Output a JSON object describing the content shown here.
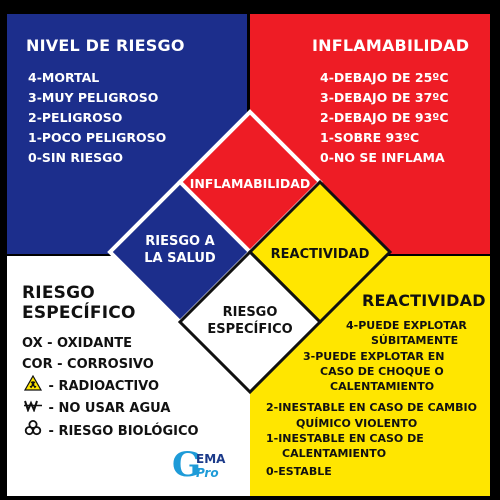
{
  "quadrants": {
    "nivel": {
      "title": "NIVEL DE RIESGO",
      "items": [
        "4-MORTAL",
        "3-MUY PELIGROSO",
        "2-PELIGROSO",
        "1-POCO PELIGROSO",
        "0-SIN RIESGO"
      ]
    },
    "inflamabilidad": {
      "title": "INFLAMABILIDAD",
      "items": [
        "4-DEBAJO DE 25ºC",
        "3-DEBAJO DE 37ºC",
        "2-DEBAJO DE 93ºC",
        "1-SOBRE 93ºC",
        "0-NO SE INFLAMA"
      ]
    },
    "especifico": {
      "title_line1": "RIESGO",
      "title_line2": "ESPECÍFICO",
      "items": [
        "OX - OXIDANTE",
        "COR - CORROSIVO",
        "- RADIOACTIVO",
        "- NO USAR AGUA",
        "- RIESGO BIOLÓGICO"
      ],
      "icons": [
        "radiation-icon",
        "no-water-icon",
        "biohazard-icon"
      ]
    },
    "reactividad": {
      "title": "REACTIVIDAD",
      "items": [
        "4-PUEDE EXPLOTAR",
        "SÚBITAMENTE",
        "3-PUEDE EXPLOTAR EN",
        "CASO DE CHOQUE O",
        "CALENTAMIENTO",
        "2-INESTABLE EN CASO DE CAMBIO",
        "QUÍMICO VIOLENTO",
        "1-INESTABLE EN CASO DE",
        "CALENTAMIENTO",
        "0-ESTABLE"
      ]
    }
  },
  "diamond": {
    "top": "INFLAMABILIDAD",
    "left_line1": "RIESGO A",
    "left_line2": "LA SALUD",
    "right": "REACTIVIDAD",
    "bottom_line1": "RIESGO",
    "bottom_line2": "ESPECÍFICO"
  },
  "colors": {
    "blue": "#1c2e8c",
    "red": "#ee1c25",
    "yellow": "#ffe600",
    "white": "#ffffff"
  },
  "logo": {
    "letter": "G",
    "line1": "EMA",
    "line2": "Pro"
  }
}
